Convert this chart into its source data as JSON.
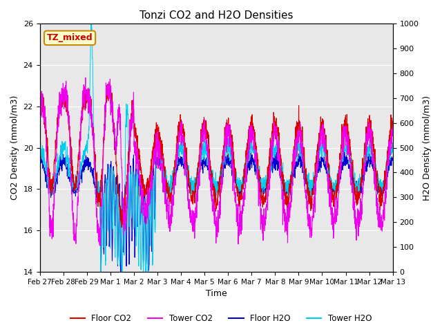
{
  "title": "Tonzi CO2 and H2O Densities",
  "xlabel": "Time",
  "ylabel_left": "CO2 Density (mmol/m3)",
  "ylabel_right": "H2O Density (mmol/m3)",
  "ylim_left": [
    14,
    26
  ],
  "ylim_right": [
    0,
    1000
  ],
  "yticks_left": [
    14,
    16,
    18,
    20,
    22,
    24,
    26
  ],
  "yticks_right": [
    0,
    100,
    200,
    300,
    400,
    500,
    600,
    700,
    800,
    900,
    1000
  ],
  "colors": {
    "floor_co2": "#dd0000",
    "tower_co2": "#ee00ee",
    "floor_h2o": "#0000cc",
    "tower_h2o": "#00ccee"
  },
  "annotation_text": "TZ_mixed",
  "annotation_color": "#cc0000",
  "annotation_bg": "#ffffcc",
  "annotation_border": "#cc8800",
  "bg_color": "#e8e8e8",
  "legend_items": [
    "Floor CO2",
    "Tower CO2",
    "Floor H2O",
    "Tower H2O"
  ],
  "n_points": 2160,
  "total_days": 15,
  "xtick_positions": [
    0,
    1,
    2,
    3,
    4,
    5,
    6,
    7,
    8,
    9,
    10,
    11,
    12,
    13,
    14,
    15
  ],
  "xtick_labels": [
    "Feb 27",
    "Feb 28",
    "Feb 29",
    "Mar 1",
    "Mar 2",
    "Mar 3",
    "Mar 4",
    "Mar 5",
    "Mar 6",
    "Mar 7",
    "Mar 8",
    "Mar 9",
    "Mar 10",
    "Mar 11",
    "Mar 12",
    "Mar 13"
  ],
  "figsize": [
    6.4,
    4.8
  ],
  "dpi": 100
}
